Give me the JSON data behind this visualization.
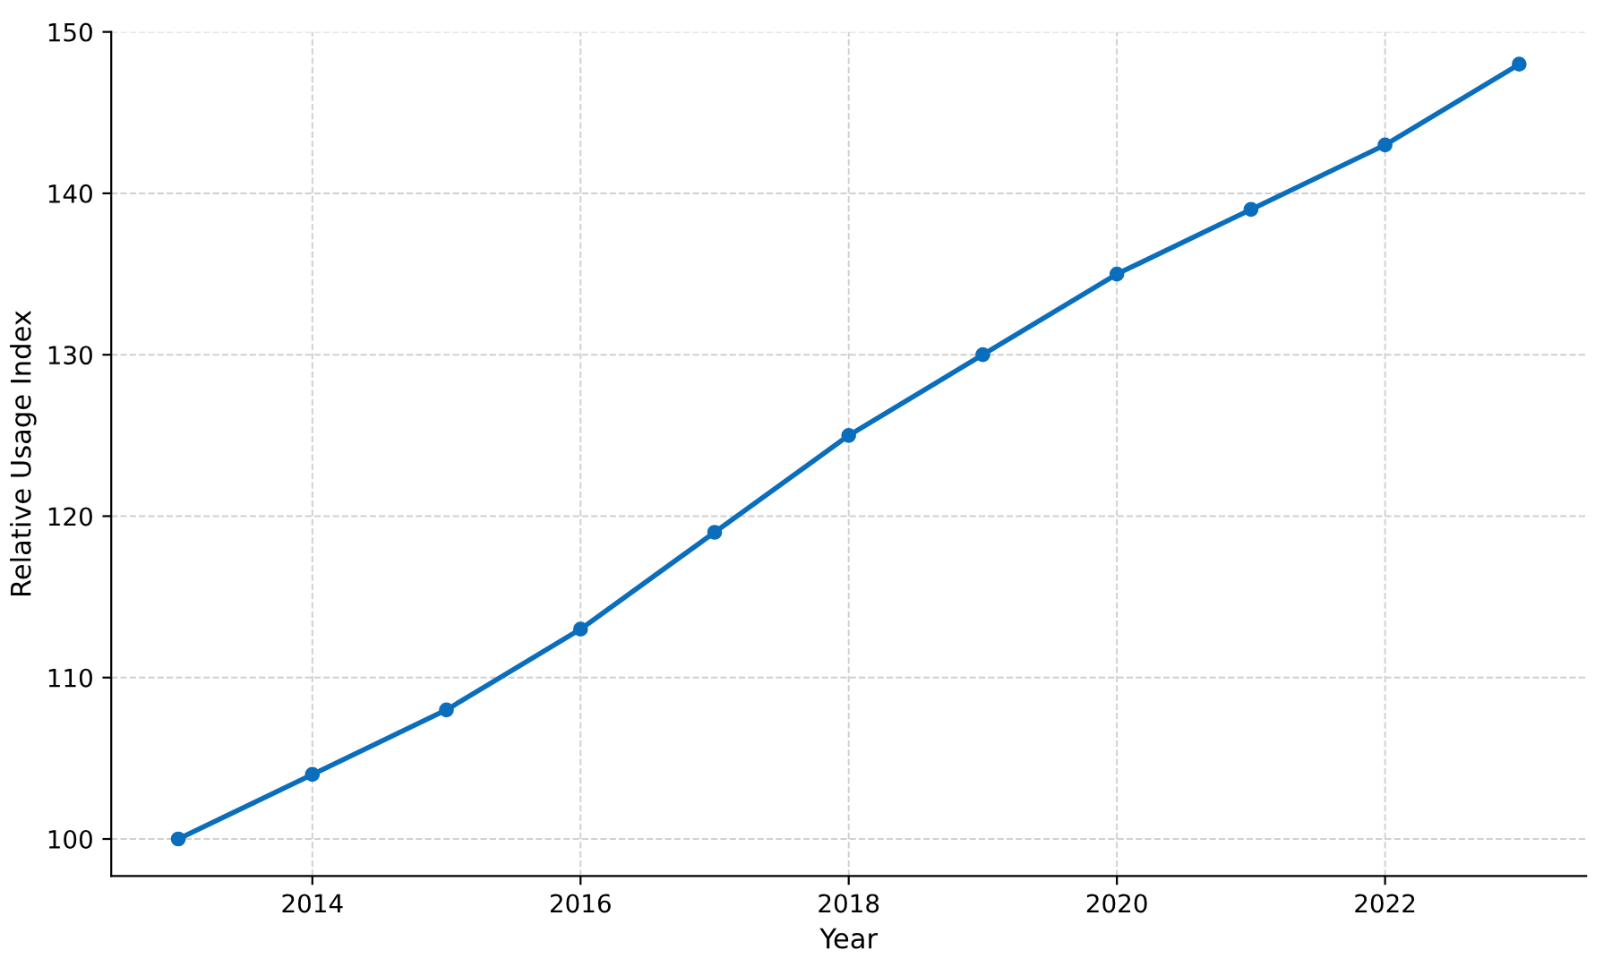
{
  "chart_data": {
    "type": "line",
    "xlabel": "Year",
    "ylabel": "Relative Usage Index",
    "x": [
      2013,
      2014,
      2015,
      2016,
      2017,
      2018,
      2019,
      2020,
      2021,
      2022,
      2023
    ],
    "series": [
      {
        "color": "#0a6ebd",
        "values": [
          100,
          104,
          108,
          113,
          119,
          125,
          130,
          135,
          139,
          143,
          148
        ]
      }
    ],
    "xlim": [
      2012.5,
      2023.5
    ],
    "xticks": [
      2014,
      2016,
      2018,
      2020,
      2022
    ],
    "ylim": [
      97.7,
      150
    ],
    "yticks": [
      100,
      110,
      120,
      130,
      140,
      150
    ],
    "grid": true,
    "marker": "circle",
    "line_style": "solid",
    "legend": false
  }
}
